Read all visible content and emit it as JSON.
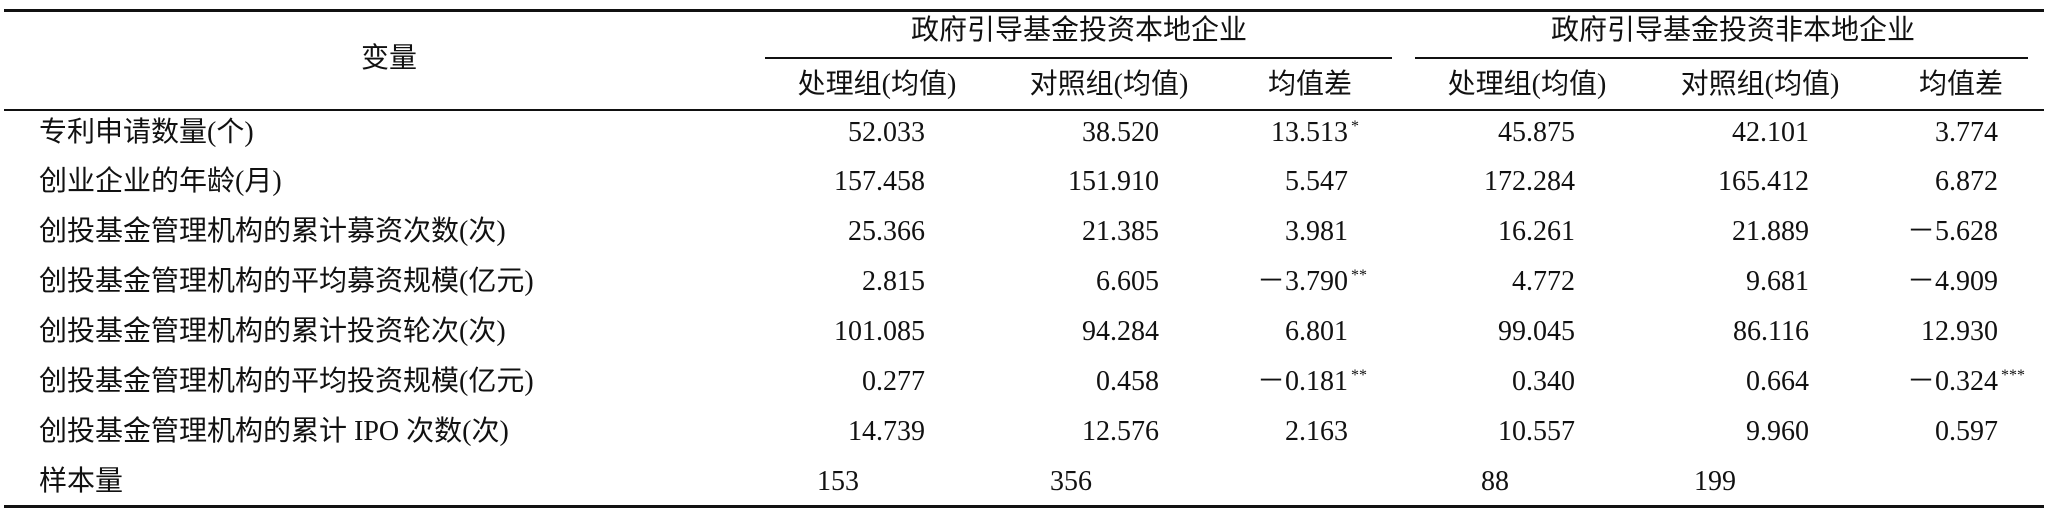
{
  "header": {
    "variable": "变量",
    "groups": [
      "政府引导基金投资本地企业",
      "政府引导基金投资非本地企业"
    ],
    "columns": [
      "处理组(均值)",
      "对照组(均值)",
      "均值差",
      "处理组(均值)",
      "对照组(均值)",
      "均值差"
    ]
  },
  "rows": [
    {
      "label": "专利申请数量(个)",
      "cells": [
        "52.033",
        "38.520",
        {
          "text": "13.513",
          "mark": "*"
        },
        "45.875",
        "42.101",
        "3.774"
      ]
    },
    {
      "label": "创业企业的年龄(月)",
      "cells": [
        "157.458",
        "151.910",
        "5.547",
        "172.284",
        "165.412",
        "6.872"
      ]
    },
    {
      "label": "创投基金管理机构的累计募资次数(次)",
      "cells": [
        "25.366",
        "21.385",
        "3.981",
        "16.261",
        "21.889",
        "－5.628"
      ]
    },
    {
      "label": "创投基金管理机构的平均募资规模(亿元)",
      "cells": [
        "2.815",
        "6.605",
        {
          "text": "－3.790",
          "mark": "**"
        },
        "4.772",
        "9.681",
        "－4.909"
      ]
    },
    {
      "label": "创投基金管理机构的累计投资轮次(次)",
      "cells": [
        "101.085",
        "94.284",
        "6.801",
        "99.045",
        "86.116",
        "12.930"
      ]
    },
    {
      "label": "创投基金管理机构的平均投资规模(亿元)",
      "cells": [
        "0.277",
        "0.458",
        {
          "text": "－0.181",
          "mark": "**"
        },
        "0.340",
        "0.664",
        {
          "text": "－0.324",
          "mark": "***"
        }
      ]
    },
    {
      "label": "创投基金管理机构的累计 IPO 次数(次)",
      "cells": [
        "14.739",
        "12.576",
        "2.163",
        "10.557",
        "9.960",
        "0.597"
      ]
    },
    {
      "label": "样本量",
      "cells": [
        "153",
        "356",
        null,
        "88",
        "199",
        null
      ]
    }
  ]
}
